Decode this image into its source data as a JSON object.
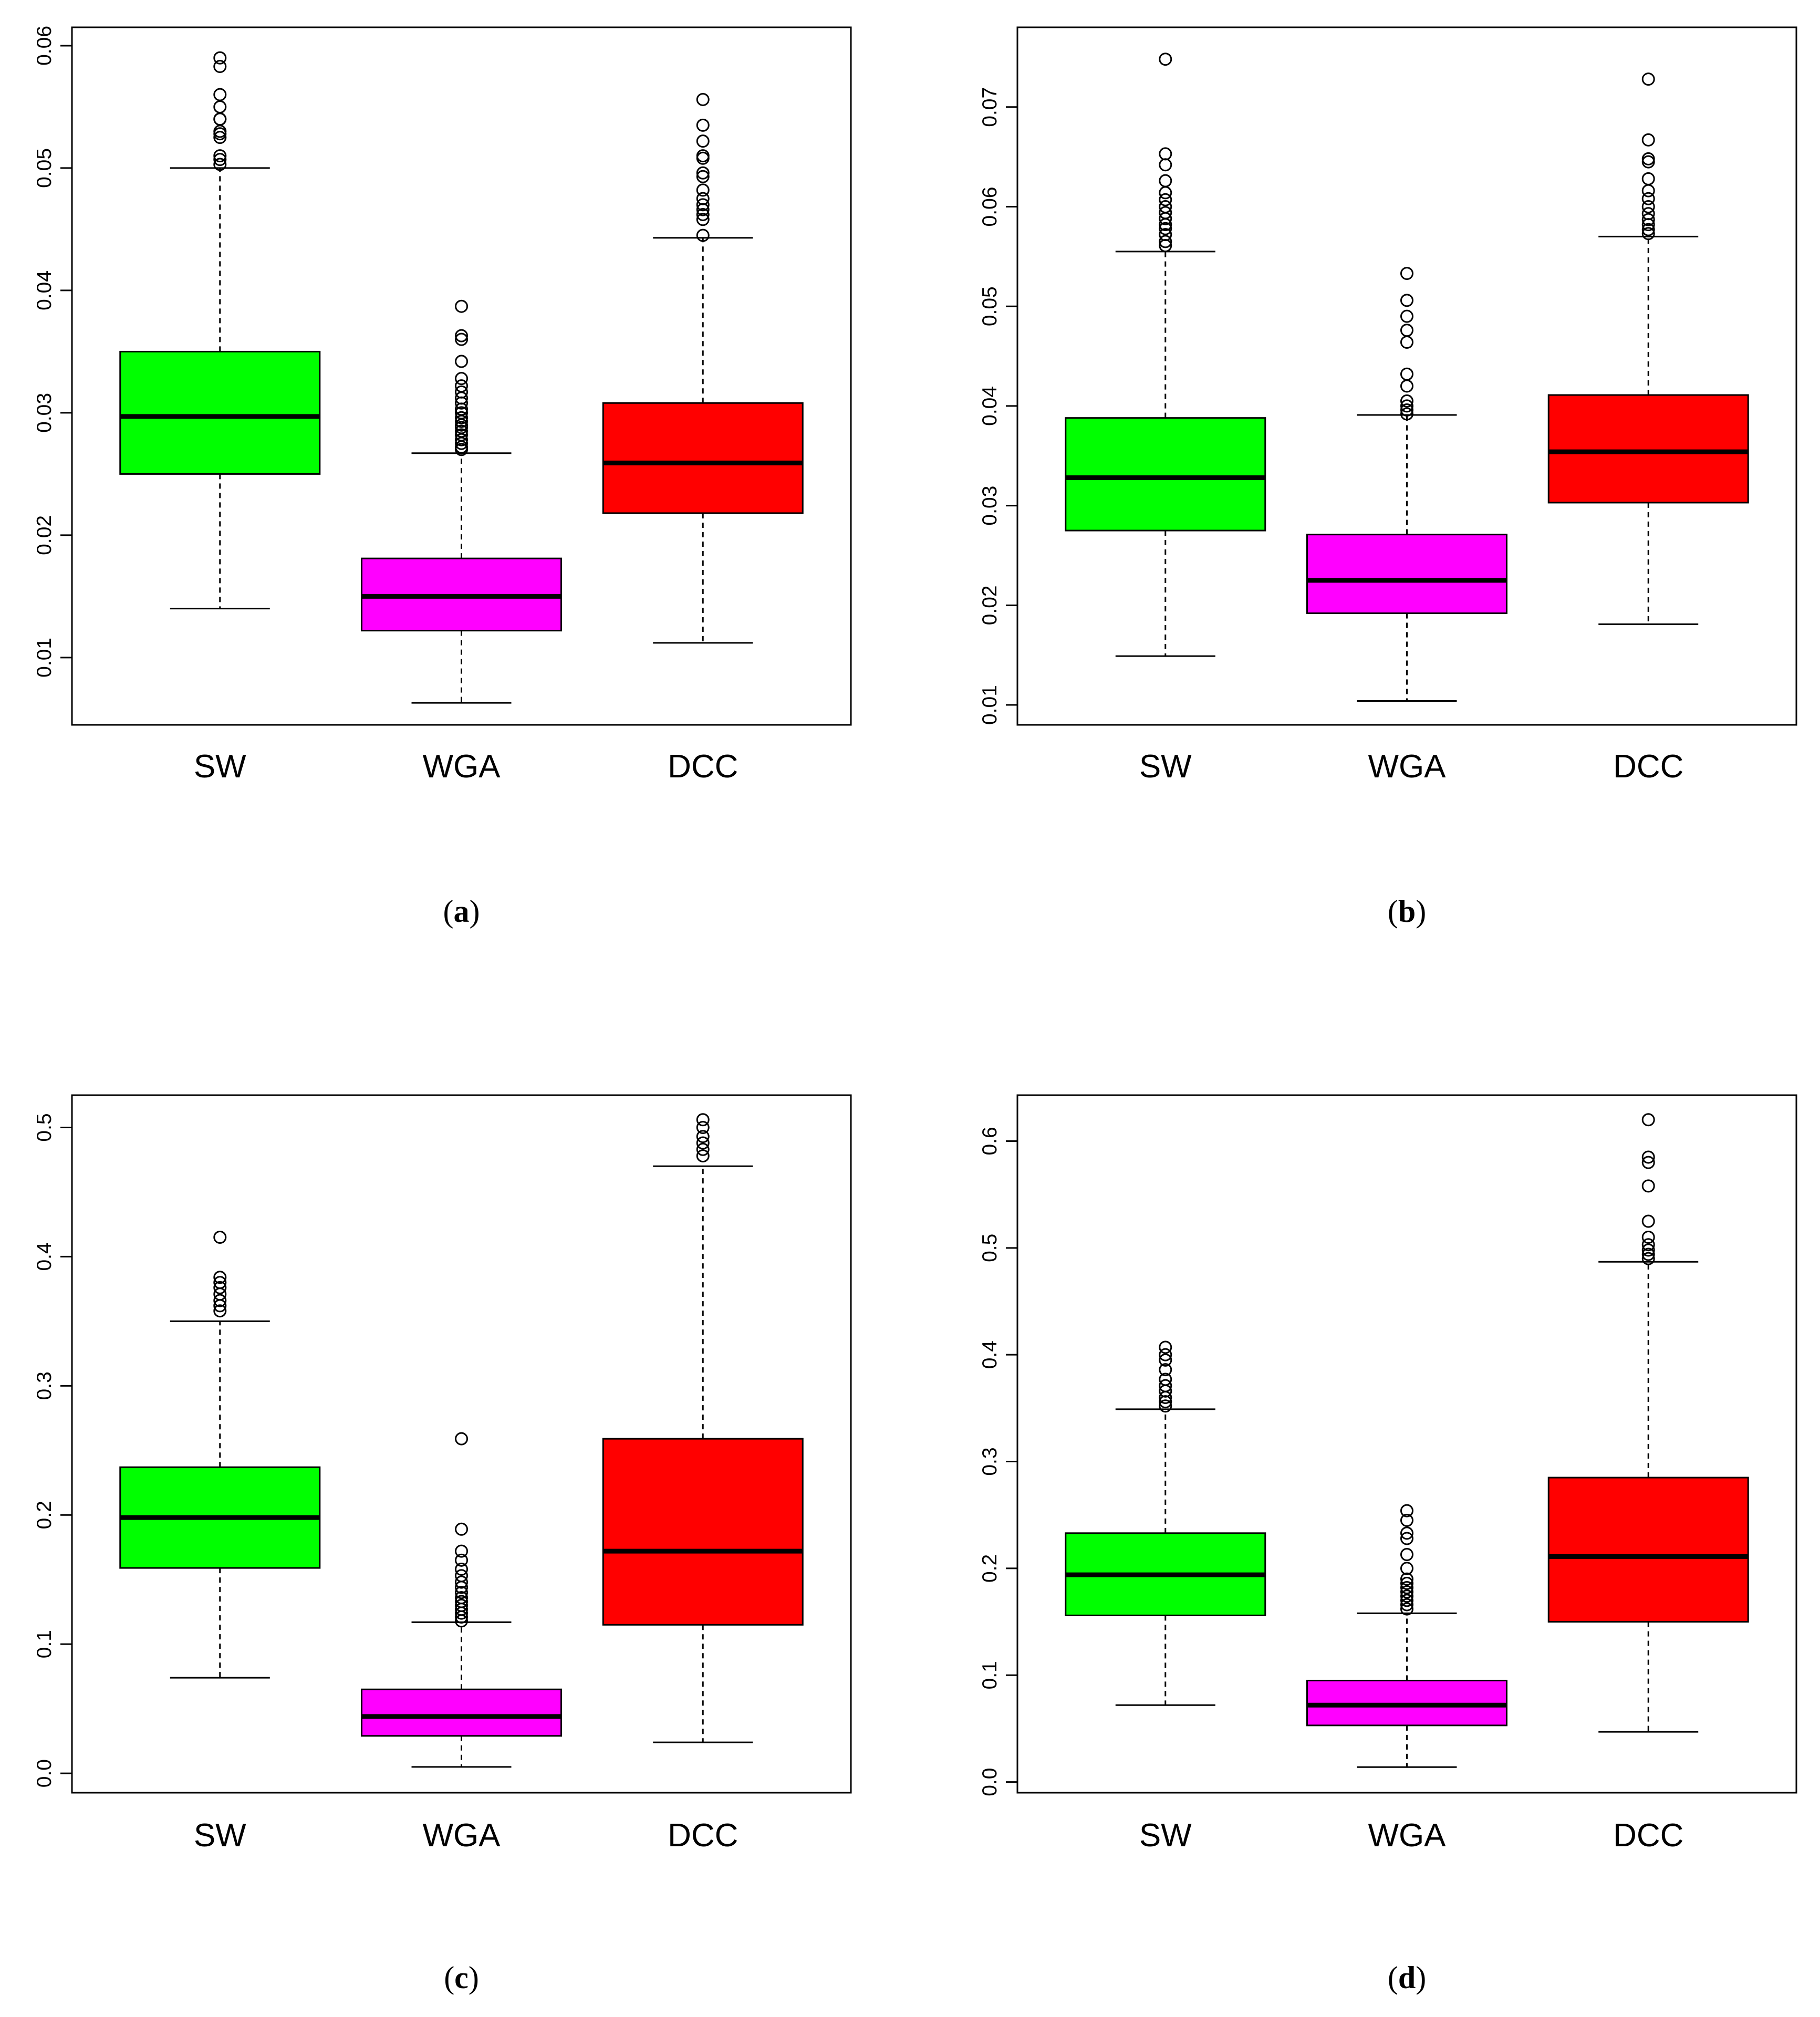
{
  "chart_data": [
    {
      "type": "box",
      "panel_label": "a",
      "categories": [
        "SW",
        "WGA",
        "DCC"
      ],
      "colors": [
        "#00ff00",
        "#ff00ff",
        "#ff0000"
      ],
      "ylim": [
        0.0045,
        0.0615
      ],
      "yticks": [
        0.01,
        0.02,
        0.03,
        0.04,
        0.05,
        0.06
      ],
      "ytick_labels": [
        "0.01",
        "0.02",
        "0.03",
        "0.04",
        "0.05",
        "0.06"
      ],
      "boxes": [
        {
          "name": "SW",
          "whisker_low": 0.014,
          "q1": 0.025,
          "median": 0.0297,
          "q3": 0.035,
          "whisker_high": 0.05,
          "outliers": [
            0.0503,
            0.0507,
            0.051,
            0.0525,
            0.0528,
            0.053,
            0.054,
            0.054,
            0.055,
            0.056,
            0.0583,
            0.059
          ]
        },
        {
          "name": "WGA",
          "whisker_low": 0.0063,
          "q1": 0.0122,
          "median": 0.015,
          "q3": 0.0181,
          "whisker_high": 0.0267,
          "outliers": [
            0.027,
            0.0272,
            0.0275,
            0.0278,
            0.0282,
            0.0285,
            0.0288,
            0.029,
            0.0293,
            0.0296,
            0.03,
            0.0303,
            0.0308,
            0.0312,
            0.0317,
            0.0322,
            0.0328,
            0.0342,
            0.036,
            0.0363,
            0.0387
          ]
        },
        {
          "name": "DCC",
          "whisker_low": 0.0112,
          "q1": 0.0218,
          "median": 0.0259,
          "q3": 0.0308,
          "whisker_high": 0.0443,
          "outliers": [
            0.0445,
            0.0458,
            0.0462,
            0.0466,
            0.047,
            0.0475,
            0.0482,
            0.0493,
            0.0496,
            0.0508,
            0.051,
            0.0522,
            0.0535,
            0.0556
          ]
        }
      ]
    },
    {
      "type": "box",
      "panel_label": "b",
      "categories": [
        "SW",
        "WGA",
        "DCC"
      ],
      "colors": [
        "#00ff00",
        "#ff00ff",
        "#ff0000"
      ],
      "ylim": [
        0.008,
        0.078
      ],
      "yticks": [
        0.01,
        0.02,
        0.03,
        0.04,
        0.05,
        0.06,
        0.07
      ],
      "ytick_labels": [
        "0.01",
        "0.02",
        "0.03",
        "0.04",
        "0.05",
        "0.06",
        "0.07"
      ],
      "boxes": [
        {
          "name": "SW",
          "whisker_low": 0.0149,
          "q1": 0.0275,
          "median": 0.0328,
          "q3": 0.0388,
          "whisker_high": 0.0555,
          "outliers": [
            0.0561,
            0.0565,
            0.0572,
            0.0578,
            0.0582,
            0.0588,
            0.0594,
            0.06,
            0.0607,
            0.0614,
            0.0626,
            0.0642,
            0.0653,
            0.0748
          ]
        },
        {
          "name": "WGA",
          "whisker_low": 0.0104,
          "q1": 0.0192,
          "median": 0.0225,
          "q3": 0.0271,
          "whisker_high": 0.0391,
          "outliers": [
            0.0392,
            0.0396,
            0.04,
            0.0405,
            0.042,
            0.0432,
            0.0464,
            0.0476,
            0.049,
            0.0506,
            0.0533
          ]
        },
        {
          "name": "DCC",
          "whisker_low": 0.0181,
          "q1": 0.0303,
          "median": 0.0354,
          "q3": 0.0411,
          "whisker_high": 0.057,
          "outliers": [
            0.0573,
            0.0577,
            0.0582,
            0.0587,
            0.0593,
            0.06,
            0.0608,
            0.0616,
            0.0628,
            0.0645,
            0.0648,
            0.0667,
            0.0728
          ]
        }
      ]
    },
    {
      "type": "box",
      "panel_label": "c",
      "categories": [
        "SW",
        "WGA",
        "DCC"
      ],
      "colors": [
        "#00ff00",
        "#ff00ff",
        "#ff0000"
      ],
      "ylim": [
        -0.015,
        0.525
      ],
      "yticks": [
        0.0,
        0.1,
        0.2,
        0.3,
        0.4,
        0.5
      ],
      "ytick_labels": [
        "0.0",
        "0.1",
        "0.2",
        "0.3",
        "0.4",
        "0.5"
      ],
      "boxes": [
        {
          "name": "SW",
          "whisker_low": 0.074,
          "q1": 0.159,
          "median": 0.198,
          "q3": 0.237,
          "whisker_high": 0.35,
          "outliers": [
            0.358,
            0.362,
            0.366,
            0.371,
            0.376,
            0.38,
            0.384,
            0.415
          ]
        },
        {
          "name": "WGA",
          "whisker_low": 0.005,
          "q1": 0.029,
          "median": 0.044,
          "q3": 0.065,
          "whisker_high": 0.117,
          "outliers": [
            0.118,
            0.121,
            0.124,
            0.127,
            0.13,
            0.133,
            0.136,
            0.14,
            0.144,
            0.148,
            0.153,
            0.158,
            0.165,
            0.172,
            0.189,
            0.259
          ]
        },
        {
          "name": "DCC",
          "whisker_low": 0.024,
          "q1": 0.115,
          "median": 0.172,
          "q3": 0.259,
          "whisker_high": 0.47,
          "outliers": [
            0.478,
            0.483,
            0.488,
            0.493,
            0.5,
            0.506
          ]
        }
      ]
    },
    {
      "type": "box",
      "panel_label": "d",
      "categories": [
        "SW",
        "WGA",
        "DCC"
      ],
      "colors": [
        "#00ff00",
        "#ff00ff",
        "#ff0000"
      ],
      "ylim": [
        -0.01,
        0.643
      ],
      "yticks": [
        0.0,
        0.1,
        0.2,
        0.3,
        0.4,
        0.5,
        0.6
      ],
      "ytick_labels": [
        "0.0",
        "0.1",
        "0.2",
        "0.3",
        "0.4",
        "0.5",
        "0.6"
      ],
      "boxes": [
        {
          "name": "SW",
          "whisker_low": 0.072,
          "q1": 0.156,
          "median": 0.194,
          "q3": 0.233,
          "whisker_high": 0.349,
          "outliers": [
            0.352,
            0.356,
            0.36,
            0.366,
            0.371,
            0.377,
            0.386,
            0.395,
            0.4,
            0.407
          ]
        },
        {
          "name": "WGA",
          "whisker_low": 0.014,
          "q1": 0.053,
          "median": 0.072,
          "q3": 0.095,
          "whisker_high": 0.158,
          "outliers": [
            0.162,
            0.166,
            0.17,
            0.174,
            0.178,
            0.182,
            0.186,
            0.19,
            0.2,
            0.213,
            0.228,
            0.233,
            0.245,
            0.254
          ]
        },
        {
          "name": "DCC",
          "whisker_low": 0.047,
          "q1": 0.15,
          "median": 0.211,
          "q3": 0.285,
          "whisker_high": 0.487,
          "outliers": [
            0.49,
            0.494,
            0.498,
            0.503,
            0.51,
            0.525,
            0.558,
            0.58,
            0.585,
            0.62
          ]
        }
      ]
    }
  ]
}
